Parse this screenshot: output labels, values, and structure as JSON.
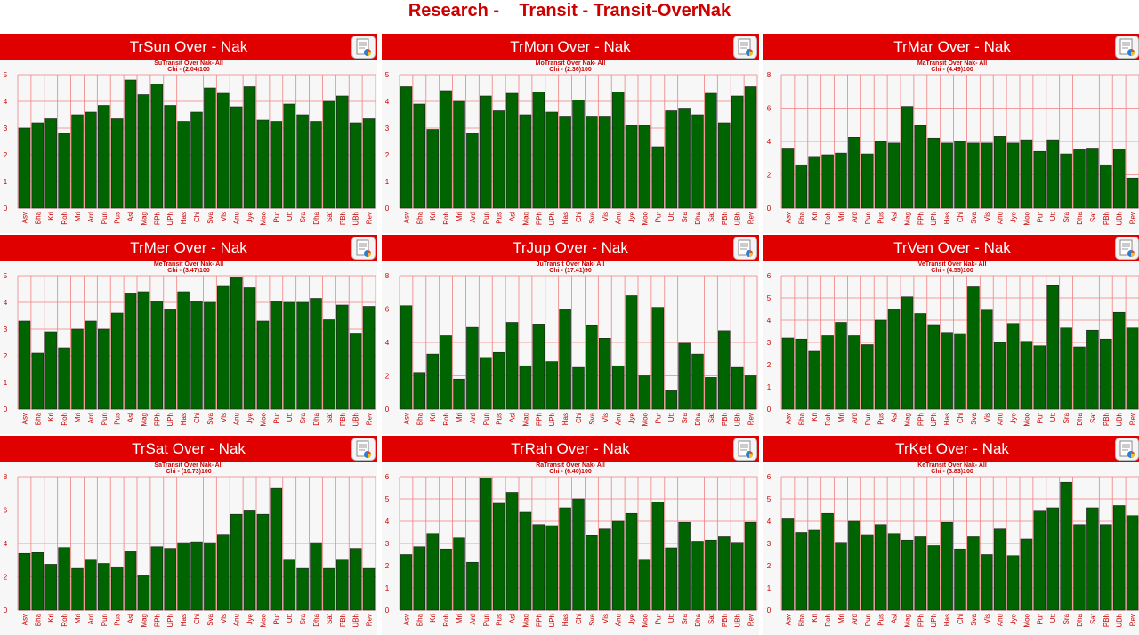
{
  "page": {
    "title": "Research -    Transit - Transit-OverNak"
  },
  "colors": {
    "header": "#e00000",
    "title_text": "#cc0000",
    "bar": "#006400",
    "grid": "#f08080",
    "sub_text": "#cc0000"
  },
  "categories": [
    "Asv",
    "Bha",
    "Kri",
    "Roh",
    "Mri",
    "Ard",
    "Pun",
    "Pus",
    "Asl",
    "Mag",
    "PPh",
    "UPh",
    "Has",
    "Chi",
    "Sva",
    "Vis",
    "Anu",
    "Jye",
    "Moo",
    "Pur",
    "Utt",
    "Sra",
    "Dha",
    "Sat",
    "PBh",
    "UBh",
    "Rev"
  ],
  "panels": [
    {
      "title": "TrSun Over - Nak",
      "button_icon": "report-icon"
    },
    {
      "title": "TrMon Over - Nak",
      "button_icon": "report-icon"
    },
    {
      "title": "TrMar Over - Nak",
      "button_icon": "report-icon"
    },
    {
      "title": "TrMer Over - Nak",
      "button_icon": "report-icon"
    },
    {
      "title": "TrJup Over - Nak",
      "button_icon": "report-icon"
    },
    {
      "title": "TrVen Over - Nak",
      "button_icon": "report-icon"
    },
    {
      "title": "TrSat Over - Nak",
      "button_icon": "report-icon"
    },
    {
      "title": "TrRah Over - Nak",
      "button_icon": "report-icon"
    },
    {
      "title": "TrKet Over - Nak",
      "button_icon": "report-icon"
    }
  ],
  "chart_data": [
    {
      "type": "bar",
      "title": "SuTransit Over Nak- All",
      "subtitle": "Chi - (2.04)100",
      "ylim": [
        0,
        5
      ],
      "yticks": [
        0,
        1,
        2,
        3,
        4,
        5
      ],
      "values": [
        3.0,
        3.2,
        3.35,
        2.8,
        3.5,
        3.6,
        3.85,
        3.35,
        4.8,
        4.25,
        4.65,
        3.85,
        3.25,
        3.6,
        4.5,
        4.3,
        3.8,
        4.55,
        3.3,
        3.25,
        3.9,
        3.5,
        3.25,
        4.0,
        4.2,
        3.2,
        3.35
      ]
    },
    {
      "type": "bar",
      "title": "MoTransit Over Nak- All",
      "subtitle": "Chi - (2.36)100",
      "ylim": [
        0,
        5
      ],
      "yticks": [
        0,
        1,
        2,
        3,
        4,
        5
      ],
      "values": [
        4.55,
        3.9,
        2.95,
        4.4,
        4.0,
        2.8,
        4.2,
        3.65,
        4.3,
        3.5,
        4.35,
        3.6,
        3.45,
        4.05,
        3.45,
        3.45,
        4.35,
        3.1,
        3.1,
        2.3,
        3.65,
        3.75,
        3.5,
        4.3,
        3.2,
        4.2,
        4.55
      ]
    },
    {
      "type": "bar",
      "title": "MaTransit Over Nak- All",
      "subtitle": "Chi - (4.49)100",
      "ylim": [
        0,
        8
      ],
      "yticks": [
        0,
        2,
        4,
        6,
        8
      ],
      "values": [
        3.6,
        2.6,
        3.1,
        3.2,
        3.3,
        4.25,
        3.25,
        4.0,
        3.9,
        6.1,
        4.95,
        4.2,
        3.9,
        4.0,
        3.9,
        3.9,
        4.3,
        3.9,
        4.1,
        3.4,
        4.1,
        3.25,
        3.55,
        3.6,
        2.6,
        3.55,
        1.8
      ]
    },
    {
      "type": "bar",
      "title": "MeTransit Over Nak- All",
      "subtitle": "Chi - (3.47)100",
      "ylim": [
        0,
        5
      ],
      "yticks": [
        0,
        1,
        2,
        3,
        4,
        5
      ],
      "values": [
        3.3,
        2.1,
        2.9,
        2.3,
        3.0,
        3.3,
        3.0,
        3.6,
        4.35,
        4.4,
        4.05,
        3.75,
        4.4,
        4.05,
        4.0,
        4.6,
        4.95,
        4.55,
        3.3,
        4.05,
        4.0,
        4.0,
        4.15,
        3.35,
        3.9,
        2.85,
        3.85
      ]
    },
    {
      "type": "bar",
      "title": "JuTransit Over Nak- All",
      "subtitle": "Chi - (17.41)90",
      "ylim": [
        0,
        8
      ],
      "yticks": [
        0,
        2,
        4,
        6,
        8
      ],
      "values": [
        6.2,
        2.2,
        3.3,
        4.4,
        1.8,
        4.9,
        3.1,
        3.4,
        5.2,
        2.6,
        5.1,
        2.85,
        6.0,
        2.5,
        5.05,
        4.25,
        2.6,
        6.8,
        2.0,
        6.1,
        1.1,
        3.95,
        3.3,
        1.9,
        4.7,
        2.5,
        2.0
      ]
    },
    {
      "type": "bar",
      "title": "VeTransit Over Nak- All",
      "subtitle": "Chi - (4.55)100",
      "ylim": [
        0,
        6
      ],
      "yticks": [
        0,
        1,
        2,
        3,
        4,
        5,
        6
      ],
      "values": [
        3.2,
        3.15,
        2.6,
        3.3,
        3.9,
        3.3,
        2.9,
        4.0,
        4.5,
        5.05,
        4.3,
        3.8,
        3.45,
        3.4,
        5.5,
        4.45,
        3.0,
        3.85,
        3.05,
        2.85,
        5.55,
        3.65,
        2.8,
        3.55,
        3.15,
        4.35,
        3.65
      ]
    },
    {
      "type": "bar",
      "title": "SaTransit Over Nak- All",
      "subtitle": "Chi - (10.73)100",
      "ylim": [
        0,
        8
      ],
      "yticks": [
        0,
        2,
        4,
        6,
        8
      ],
      "values": [
        3.4,
        3.45,
        2.75,
        3.75,
        2.5,
        3.0,
        2.8,
        2.6,
        3.55,
        2.1,
        3.8,
        3.7,
        4.05,
        4.1,
        4.05,
        4.55,
        5.75,
        5.95,
        5.75,
        7.3,
        3.0,
        2.5,
        4.05,
        2.5,
        3.0,
        3.7,
        2.5
      ]
    },
    {
      "type": "bar",
      "title": "RaTransit Over Nak- All",
      "subtitle": "Chi - (6.40)100",
      "ylim": [
        0,
        6
      ],
      "yticks": [
        0,
        1,
        2,
        3,
        4,
        5,
        6
      ],
      "values": [
        2.5,
        2.85,
        3.45,
        2.75,
        3.25,
        2.15,
        5.95,
        4.8,
        5.3,
        4.4,
        3.85,
        3.8,
        4.6,
        5.0,
        3.35,
        3.65,
        4.0,
        4.35,
        2.25,
        4.85,
        2.8,
        3.95,
        3.1,
        3.15,
        3.3,
        3.05,
        3.95
      ]
    },
    {
      "type": "bar",
      "title": "KeTransit Over Nak- All",
      "subtitle": "Chi - (3.83)100",
      "ylim": [
        0,
        6
      ],
      "yticks": [
        0,
        1,
        2,
        3,
        4,
        5,
        6
      ],
      "values": [
        4.1,
        3.5,
        3.6,
        4.35,
        3.05,
        4.0,
        3.4,
        3.85,
        3.45,
        3.15,
        3.3,
        2.9,
        3.95,
        2.75,
        3.3,
        2.5,
        3.65,
        2.45,
        3.2,
        4.45,
        4.6,
        5.75,
        3.85,
        4.6,
        3.85,
        4.7,
        4.25
      ]
    }
  ]
}
